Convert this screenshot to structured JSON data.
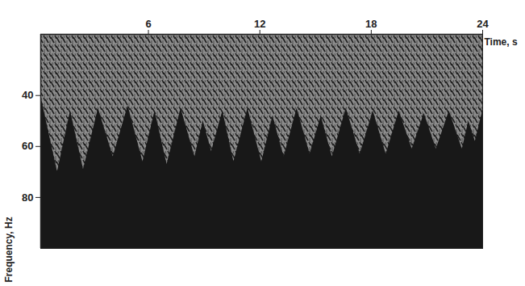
{
  "chart_data": {
    "type": "area",
    "xlabel": "Time, s",
    "ylabel": "Frequency, Hz",
    "x": [
      0.2,
      1.1,
      1.8,
      2.5,
      3.3,
      4.1,
      4.9,
      5.7,
      6.35,
      7.0,
      7.75,
      8.5,
      8.95,
      9.4,
      10.0,
      10.6,
      11.35,
      12.1,
      12.7,
      13.3,
      14.0,
      14.7,
      15.3,
      15.9,
      16.65,
      17.4,
      18.1,
      18.8,
      19.5,
      20.2,
      20.85,
      21.5,
      22.2,
      22.9,
      23.25,
      23.6,
      24.0
    ],
    "values": [
      40,
      70,
      46,
      69,
      45,
      64,
      44,
      66,
      46,
      67,
      45,
      64,
      50,
      62,
      46,
      66,
      45,
      66,
      48,
      64,
      45,
      63,
      48,
      64,
      45,
      63,
      46,
      63,
      46,
      61,
      47,
      61,
      46,
      61,
      50,
      58,
      46
    ],
    "color": "#8c8c8c",
    "xlim": [
      0.2,
      24
    ],
    "xticks": [
      6,
      12,
      18,
      24
    ],
    "ylim": [
      16,
      100
    ],
    "yticks": [
      40,
      60,
      80
    ]
  }
}
